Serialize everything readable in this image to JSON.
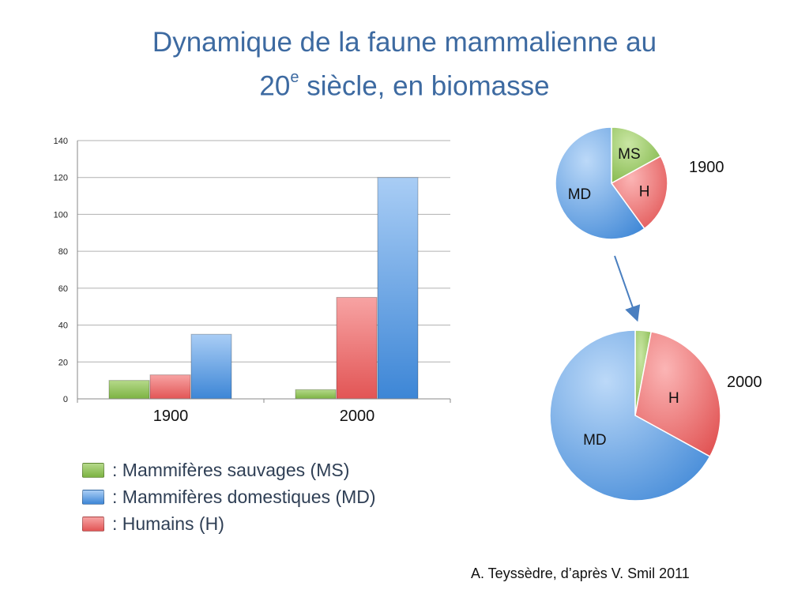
{
  "title_line1": "Dynamique de la faune mammalienne au",
  "title_line2_prefix": "20",
  "title_line2_sup": "e",
  "title_line2_suffix": " siècle, en biomasse",
  "legend": [
    {
      "key": "MS",
      "text": ":  Mammifères sauvages (MS)",
      "color": "#8bc34a"
    },
    {
      "key": "MD",
      "text": ":  Mammifères domestiques (MD)",
      "color": "#4a90d9"
    },
    {
      "key": "H",
      "text": ":  Humains (H)",
      "color": "#f06a6a"
    }
  ],
  "credit": "A. Teyssèdre, d’après V. Smil 2011",
  "colors": {
    "MS": "#8bc34a",
    "MD": "#4a90d9",
    "H": "#f06a6a",
    "title": "#3d6aa1"
  },
  "chart_data": [
    {
      "type": "bar",
      "categories": [
        "1900",
        "2000"
      ],
      "series": [
        {
          "key": "MS",
          "values": [
            10,
            5
          ]
        },
        {
          "key": "H",
          "values": [
            13,
            55
          ]
        },
        {
          "key": "MD",
          "values": [
            35,
            120
          ]
        }
      ],
      "ylim": [
        0,
        140
      ],
      "yticks": [
        0,
        20,
        40,
        60,
        80,
        100,
        120,
        140
      ],
      "grid": true
    },
    {
      "type": "pie",
      "year_label": "1900",
      "slices": [
        {
          "label": "MS",
          "value": 17
        },
        {
          "label": "H",
          "value": 23
        },
        {
          "label": "MD",
          "value": 60
        }
      ]
    },
    {
      "type": "pie",
      "year_label": "2000",
      "slices": [
        {
          "label": "MS",
          "value": 3
        },
        {
          "label": "H",
          "value": 30
        },
        {
          "label": "MD",
          "value": 67
        }
      ]
    }
  ]
}
